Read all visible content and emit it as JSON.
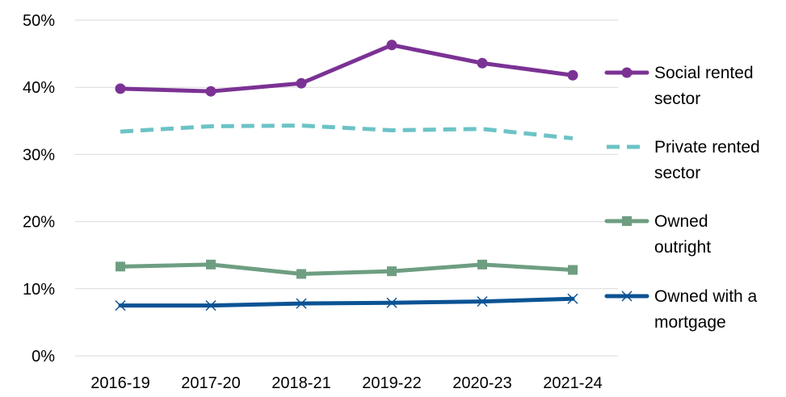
{
  "chart_data": {
    "type": "line",
    "title": "",
    "xlabel": "",
    "ylabel": "",
    "categories": [
      "2016-19",
      "2017-20",
      "2018-21",
      "2019-22",
      "2020-23",
      "2021-24"
    ],
    "ylim": [
      0,
      50
    ],
    "yticks": [
      0,
      10,
      20,
      30,
      40,
      50
    ],
    "y_tick_labels": [
      "0%",
      "10%",
      "20%",
      "30%",
      "40%",
      "50%"
    ],
    "grid": true,
    "legend_position": "right",
    "series": [
      {
        "name": "Social rented sector",
        "legend_lines": [
          "Social rented",
          "sector"
        ],
        "values": [
          39.8,
          39.4,
          40.6,
          46.3,
          43.6,
          41.8
        ],
        "color": "#7b3294",
        "marker": "circle",
        "dash": false,
        "stroke_width": 5
      },
      {
        "name": "Private rented sector",
        "legend_lines": [
          "Private rented",
          "sector"
        ],
        "values": [
          33.4,
          34.2,
          34.3,
          33.6,
          33.8,
          32.4
        ],
        "color": "#6cc3c6",
        "marker": "none",
        "dash": true,
        "stroke_width": 5
      },
      {
        "name": "Owned outright",
        "legend_lines": [
          "Owned",
          "outright"
        ],
        "values": [
          13.3,
          13.6,
          12.2,
          12.6,
          13.6,
          12.8
        ],
        "color": "#6e9e82",
        "marker": "square",
        "dash": false,
        "stroke_width": 5
      },
      {
        "name": "Owned with a mortgage",
        "legend_lines": [
          "Owned with a",
          "mortgage"
        ],
        "values": [
          7.5,
          7.5,
          7.8,
          7.9,
          8.1,
          8.5
        ],
        "color": "#0b5394",
        "marker": "x",
        "dash": false,
        "stroke_width": 5
      }
    ]
  }
}
